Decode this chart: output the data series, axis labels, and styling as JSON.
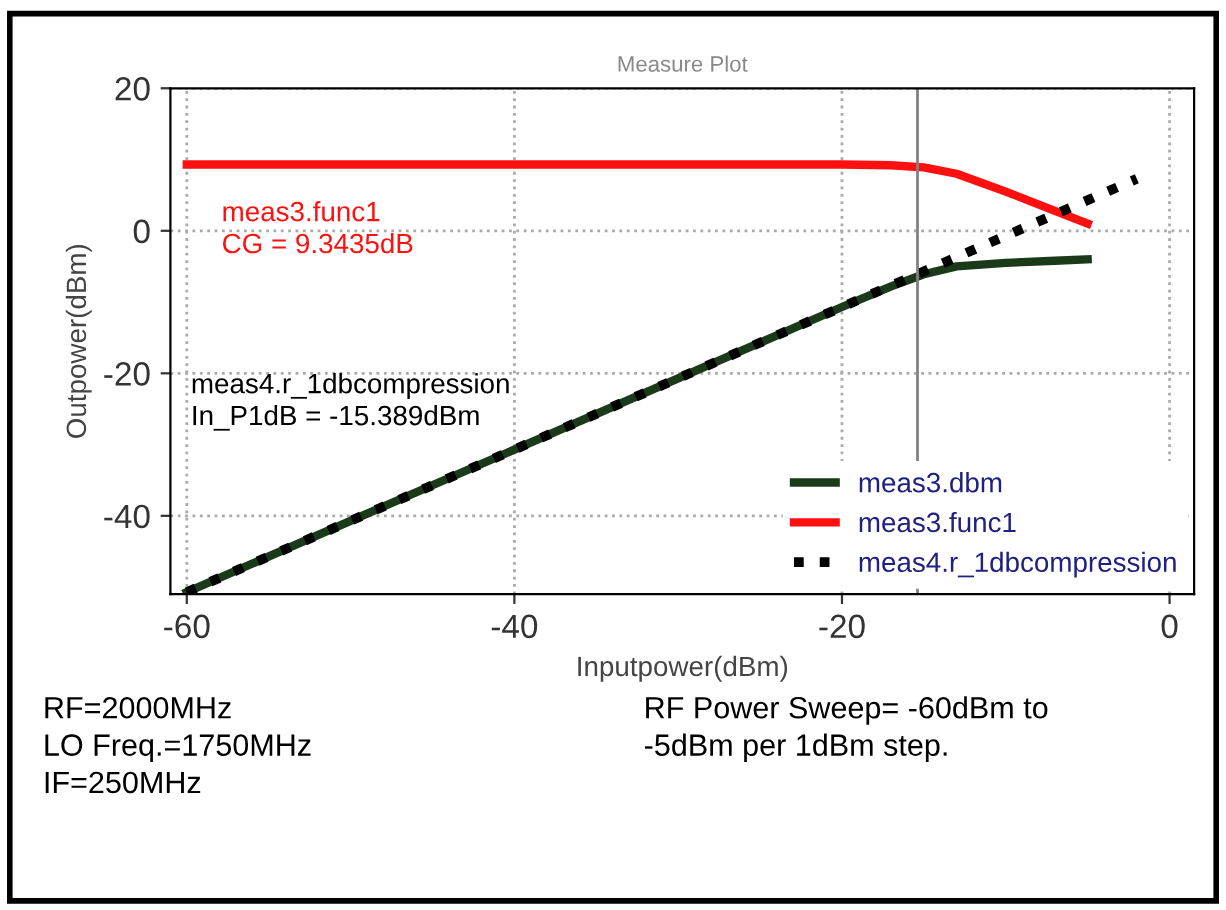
{
  "chart_data": {
    "type": "line",
    "title": "Measure Plot",
    "xlabel": "Inputpower(dBm)",
    "ylabel": "Outpower(dBm)",
    "xlim": [
      -61,
      1.5
    ],
    "ylim": [
      -51,
      20
    ],
    "xticks": [
      -60,
      -40,
      -20,
      0
    ],
    "yticks": [
      -40,
      -20,
      0,
      20
    ],
    "grid": true,
    "legend": "bottom right",
    "line_style": "solid",
    "series": [
      {
        "name": "meas3.dbm",
        "color": "#1a3a1a",
        "x": [
          -60,
          -50,
          -40,
          -30,
          -25,
          -20,
          -17,
          -15,
          -13,
          -10,
          -7,
          -5
        ],
        "values": [
          -50.7,
          -40.7,
          -30.7,
          -20.7,
          -15.7,
          -10.7,
          -7.8,
          -6.1,
          -5.0,
          -4.5,
          -4.2,
          -4.0
        ]
      },
      {
        "name": "meas3.func1",
        "color": "#ff1010",
        "x": [
          -60,
          -40,
          -20,
          -17,
          -15,
          -13,
          -10,
          -7,
          -5
        ],
        "values": [
          9.3,
          9.3,
          9.3,
          9.2,
          8.9,
          8.0,
          5.5,
          2.8,
          1.0
        ]
      },
      {
        "name": "meas4.r_1dbcompression",
        "color": "#000000",
        "line_style": "dotted",
        "x": [
          -60,
          -2
        ],
        "values": [
          -50.7,
          7.3
        ]
      }
    ],
    "ref_lines": [
      {
        "axis": "x",
        "value": -15.389,
        "color": "#808080"
      }
    ],
    "annotations": [
      "meas3.func1\nCG = 9.3435dB",
      "meas4.r_1dbcompression\nIn_P1dB = -15.389dBm",
      "RF=2000MHz\nLO Freq.=1750MHz\nIF=250MHz",
      "RF Power Sweep= -60dBm to\n-5dBm per 1dBm step."
    ]
  }
}
